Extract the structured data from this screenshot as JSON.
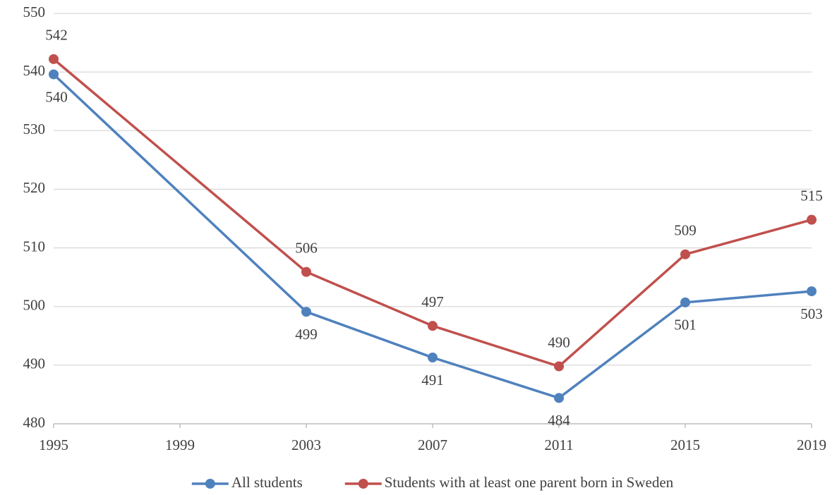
{
  "chart_data": {
    "type": "line",
    "x": [
      1995,
      2003,
      2007,
      2011,
      2015,
      2019
    ],
    "series": [
      {
        "name": "All students",
        "color": "#4f81bd",
        "values": [
          539.6,
          499.1,
          491.3,
          484.4,
          500.7,
          502.6
        ],
        "value_labels": [
          "540",
          "499",
          "491",
          "484",
          "501",
          "503"
        ]
      },
      {
        "name": "Students with at least one parent born in Sweden",
        "color": "#c0504d",
        "values": [
          542.2,
          505.9,
          496.7,
          489.8,
          508.9,
          514.8
        ],
        "value_labels": [
          "542",
          "506",
          "497",
          "490",
          "509",
          "515"
        ]
      }
    ],
    "xlim": [
      1995,
      2019
    ],
    "xticks": [
      1995,
      1999,
      2003,
      2007,
      2011,
      2015,
      2019
    ],
    "ylim": [
      480,
      550
    ],
    "yticks": [
      480,
      490,
      500,
      510,
      520,
      530,
      540,
      550
    ],
    "grid": true,
    "legend": "bottom"
  }
}
